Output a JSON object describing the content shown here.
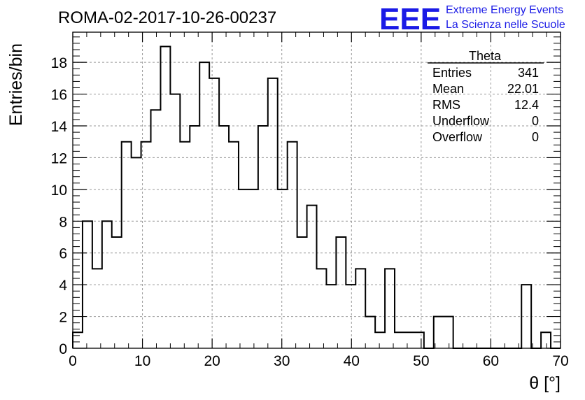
{
  "header": {
    "title": "ROMA-02-2017-10-26-00237",
    "logo": {
      "mark": "EEE",
      "line1": "Extreme Energy Events",
      "line2": "La Scienza nelle Scuole",
      "color": "#1a1ae6"
    }
  },
  "stats_box": {
    "name": "Theta",
    "rows": [
      {
        "label": "Entries",
        "value": "341"
      },
      {
        "label": "Mean",
        "value": "22.01"
      },
      {
        "label": "RMS",
        "value": "12.4"
      },
      {
        "label": "Underflow",
        "value": "0"
      },
      {
        "label": "Overflow",
        "value": "0"
      }
    ]
  },
  "chart_data": {
    "type": "histogram",
    "title": "ROMA-02-2017-10-26-00237",
    "xlabel": "θ [°]",
    "ylabel": "Entries/bin",
    "xlim": [
      0,
      70
    ],
    "ylim": [
      0,
      19.9
    ],
    "grid": true,
    "line_color": "#000000",
    "bin_width": 1.4,
    "bin_start": 0,
    "x_ticks": [
      0,
      10,
      20,
      30,
      40,
      50,
      60,
      70
    ],
    "y_ticks": [
      0,
      2,
      4,
      6,
      8,
      10,
      12,
      14,
      16,
      18
    ],
    "counts": [
      1,
      8,
      5,
      8,
      7,
      13,
      12,
      13,
      15,
      19,
      16,
      13,
      14,
      18,
      17,
      14,
      13,
      10,
      10,
      14,
      17,
      10,
      13,
      7,
      9,
      5,
      4,
      7,
      4,
      5,
      2,
      1,
      5,
      1,
      1,
      1,
      0,
      2,
      2,
      0,
      0,
      0,
      0,
      0,
      0,
      0,
      4,
      0,
      1,
      0
    ]
  }
}
